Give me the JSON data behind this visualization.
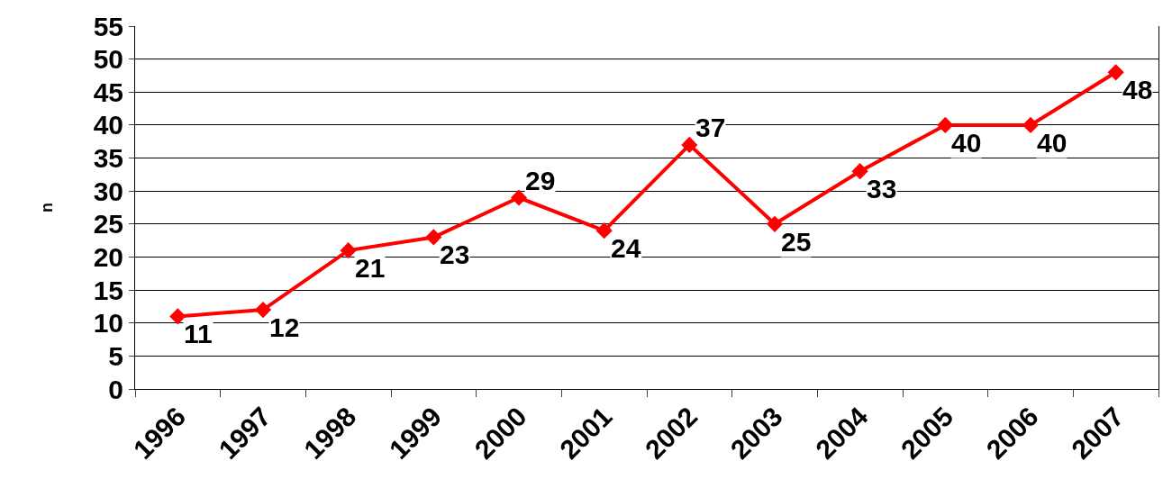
{
  "chart_data": {
    "type": "line",
    "ylabel": "n",
    "categories": [
      "1996",
      "1997",
      "1998",
      "1999",
      "2000",
      "2001",
      "2002",
      "2003",
      "2004",
      "2005",
      "2006",
      "2007"
    ],
    "series": [
      {
        "color": "#ff0000",
        "values": [
          11,
          12,
          21,
          23,
          29,
          24,
          37,
          25,
          33,
          40,
          40,
          48
        ]
      }
    ],
    "ylim": [
      0,
      55
    ],
    "yticks": [
      0,
      5,
      10,
      15,
      20,
      25,
      30,
      35,
      40,
      45,
      50,
      55
    ],
    "grid": "y",
    "marker": "diamond",
    "line_style": "solid",
    "data_labels": true,
    "legend": false
  }
}
